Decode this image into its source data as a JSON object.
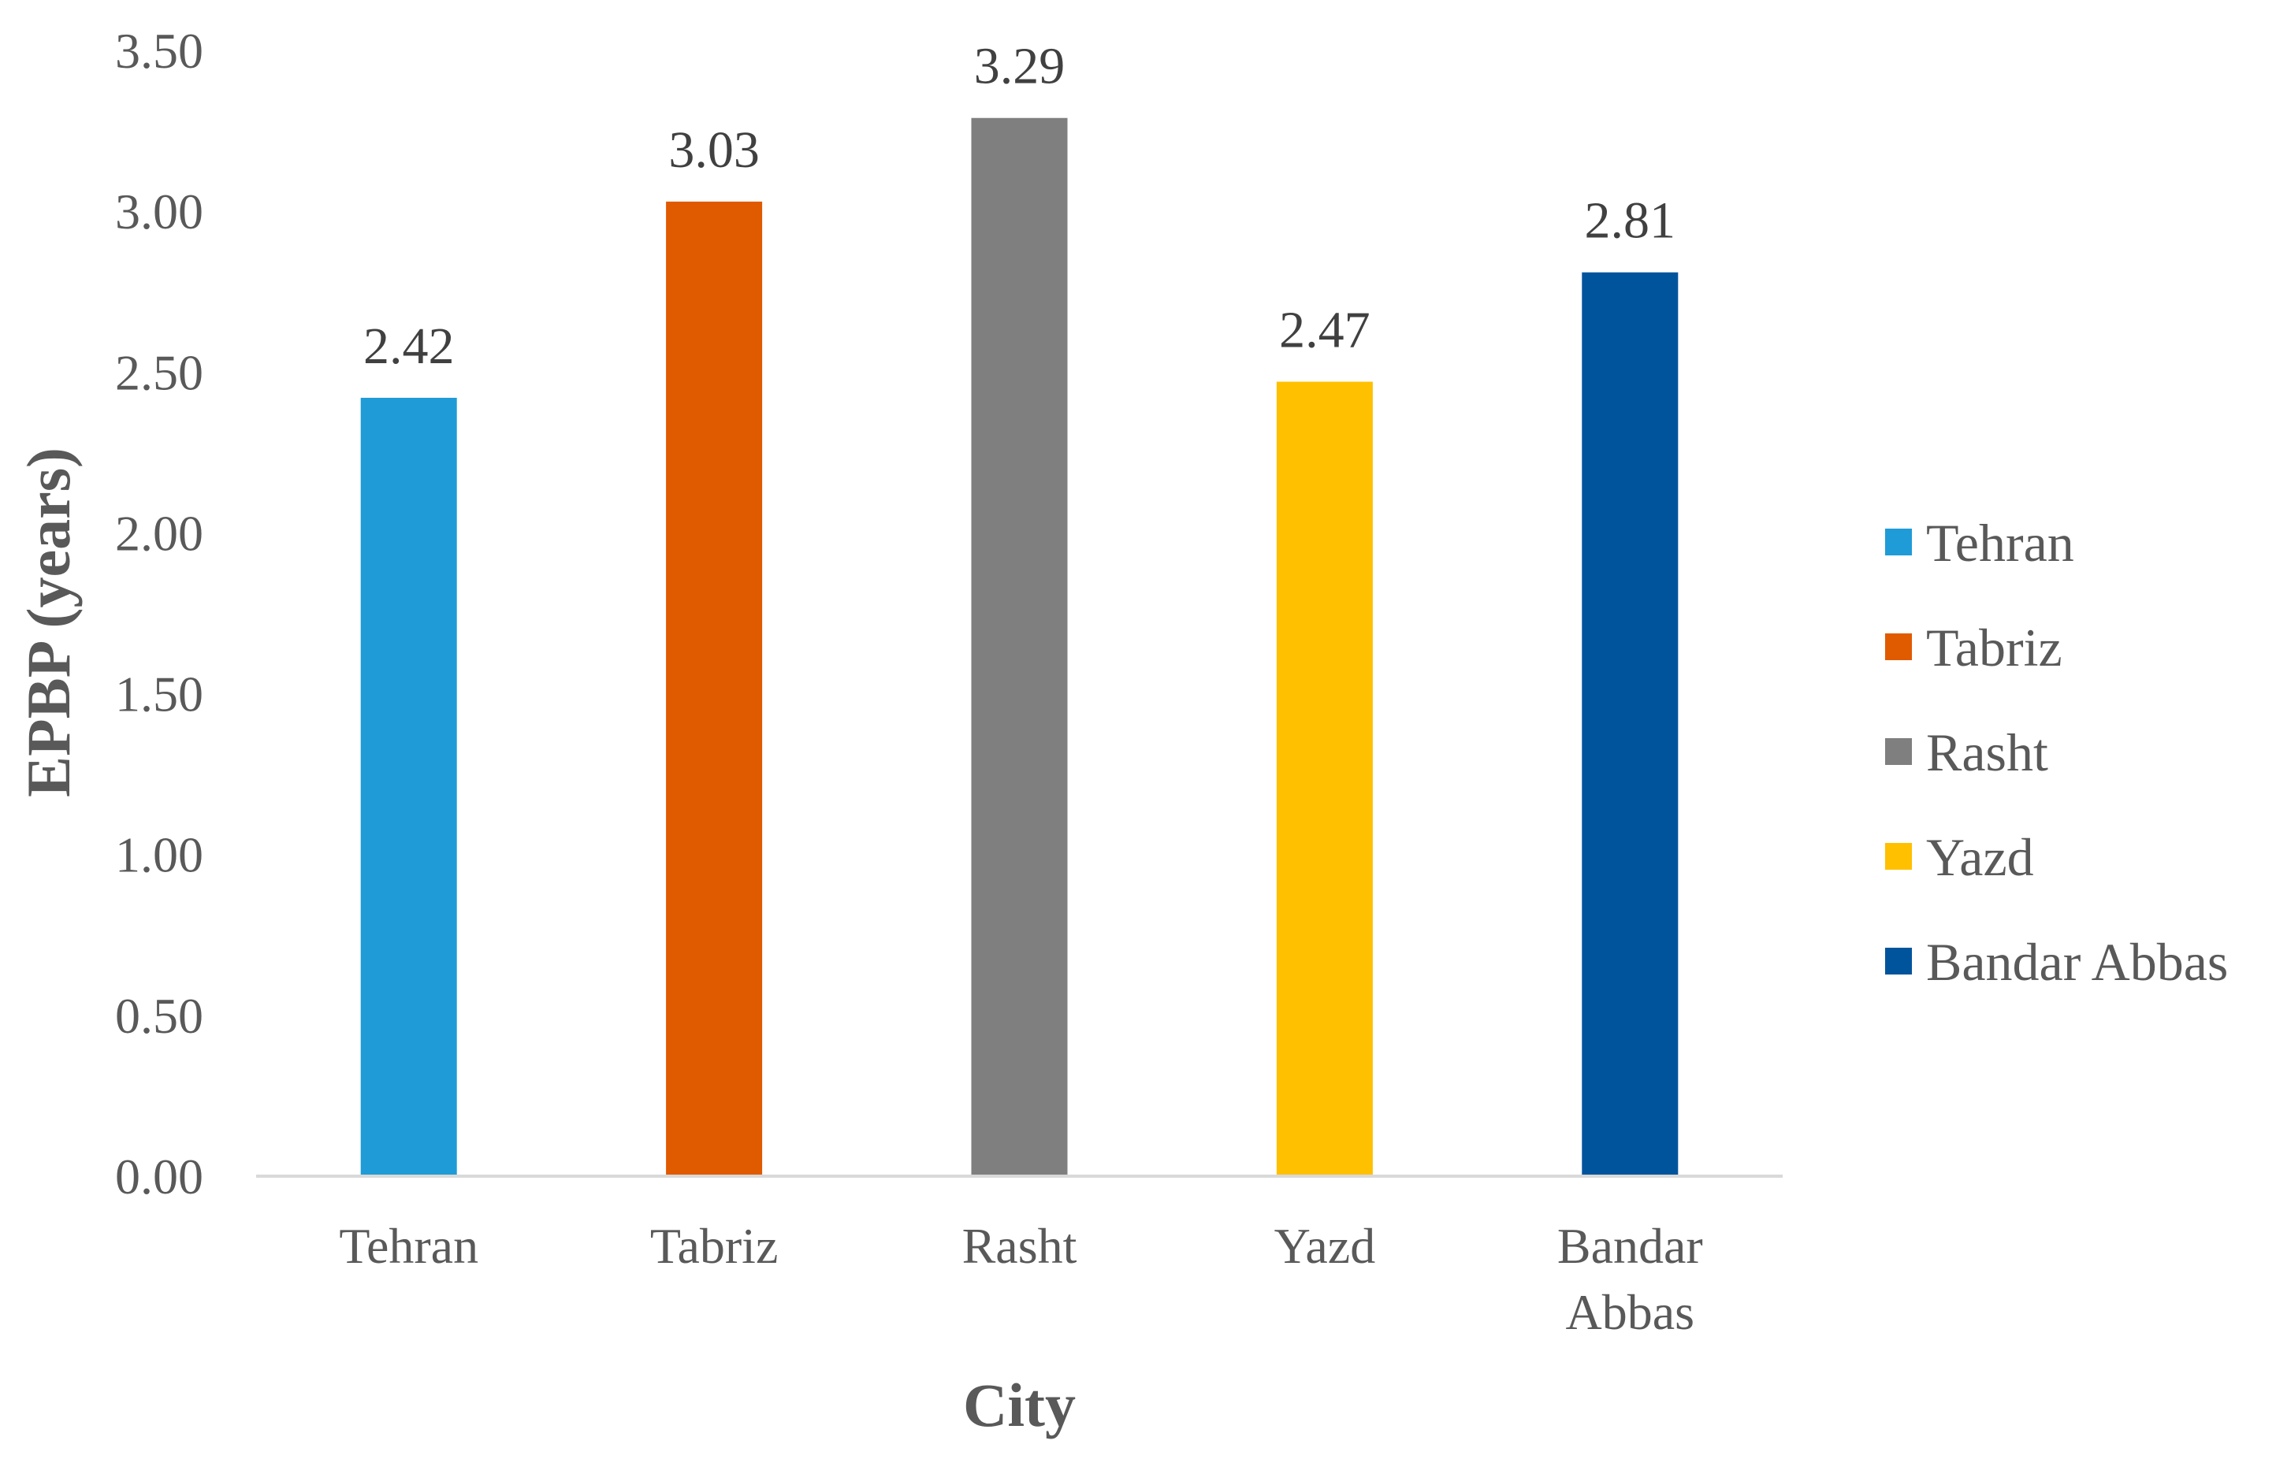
{
  "chart_data": {
    "type": "bar",
    "categories": [
      "Tehran",
      "Tabriz",
      "Rasht",
      "Yazd",
      "Bandar Abbas"
    ],
    "category_lines": [
      [
        "Tehran"
      ],
      [
        "Tabriz"
      ],
      [
        "Rasht"
      ],
      [
        "Yazd"
      ],
      [
        "Bandar",
        "Abbas"
      ]
    ],
    "values": [
      2.42,
      3.03,
      3.29,
      2.47,
      2.81
    ],
    "value_labels": [
      "2.42",
      "3.03",
      "3.29",
      "2.47",
      "2.81"
    ],
    "colors": [
      "#1f9bd7",
      "#e05a00",
      "#7f7f7f",
      "#ffc000",
      "#00549c"
    ],
    "xlabel": "City",
    "ylabel": "EPBP (years)",
    "ylim": [
      0,
      3.5
    ],
    "yticks": [
      "0.00",
      "0.50",
      "1.00",
      "1.50",
      "2.00",
      "2.50",
      "3.00",
      "3.50"
    ],
    "ytick_step": 0.5,
    "grid": false,
    "legend": {
      "position": "right",
      "entries": [
        "Tehran",
        "Tabriz",
        "Rasht",
        "Yazd",
        "Bandar Abbas"
      ]
    },
    "axis_color": "#d9d9d9"
  }
}
